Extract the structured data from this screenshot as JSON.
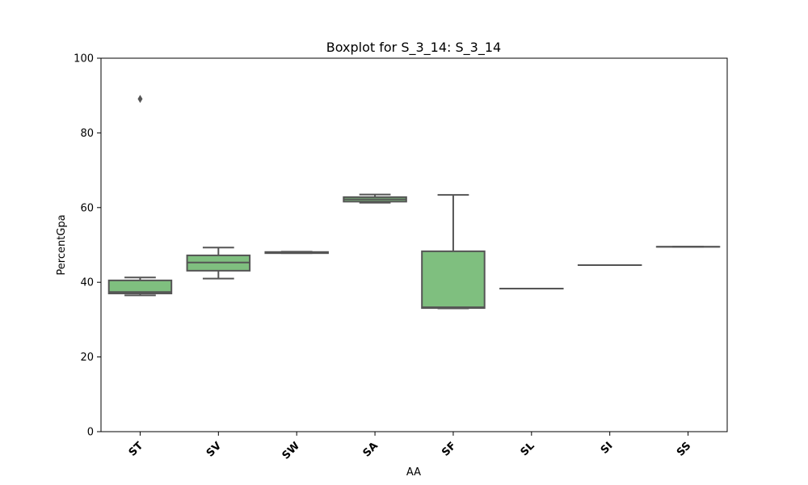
{
  "chart_data": {
    "type": "box",
    "title": "Boxplot for S_3_14: S_3_14",
    "xlabel": "AA",
    "ylabel": "PercentGpa",
    "ylim": [
      0,
      100
    ],
    "yticks": [
      0,
      20,
      40,
      60,
      80,
      100
    ],
    "categories": [
      "ST",
      "SV",
      "SW",
      "SA",
      "SF",
      "SL",
      "SI",
      "SS"
    ],
    "boxes": [
      {
        "category": "ST",
        "whisker_low": 36.5,
        "q1": 37.0,
        "median": 37.4,
        "q3": 40.5,
        "whisker_high": 41.3,
        "outliers": [
          89.1
        ]
      },
      {
        "category": "SV",
        "whisker_low": 41.0,
        "q1": 43.1,
        "median": 45.3,
        "q3": 47.2,
        "whisker_high": 49.3,
        "outliers": []
      },
      {
        "category": "SW",
        "whisker_low": 47.8,
        "q1": 47.8,
        "median": 48.0,
        "q3": 48.1,
        "whisker_high": 48.2,
        "outliers": []
      },
      {
        "category": "SA",
        "whisker_low": 61.3,
        "q1": 61.6,
        "median": 62.2,
        "q3": 62.8,
        "whisker_high": 63.5,
        "outliers": []
      },
      {
        "category": "SF",
        "whisker_low": 33.0,
        "q1": 33.1,
        "median": 33.3,
        "q3": 48.3,
        "whisker_high": 63.4,
        "outliers": []
      },
      {
        "category": "SL",
        "whisker_low": 38.3,
        "q1": 38.3,
        "median": 38.3,
        "q3": 38.3,
        "whisker_high": 38.3,
        "outliers": []
      },
      {
        "category": "SI",
        "whisker_low": 44.6,
        "q1": 44.6,
        "median": 44.6,
        "q3": 44.6,
        "whisker_high": 44.6,
        "outliers": []
      },
      {
        "category": "SS",
        "whisker_low": 49.5,
        "q1": 49.5,
        "median": 49.5,
        "q3": 49.5,
        "whisker_high": 49.5,
        "outliers": []
      }
    ],
    "colors": {
      "box_fill": "#7fbf7f",
      "box_edge": "#555555",
      "outlier": "#555555"
    },
    "grid": false,
    "legend": "none"
  }
}
